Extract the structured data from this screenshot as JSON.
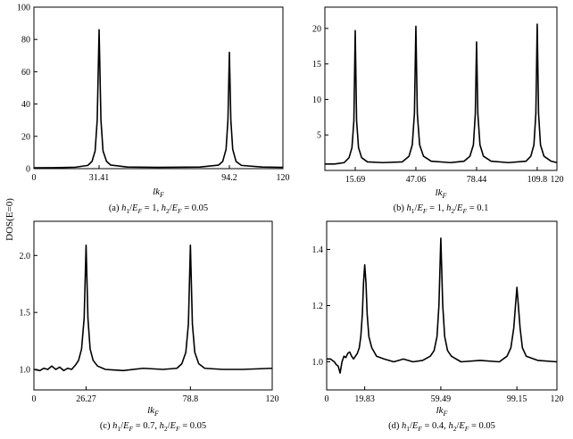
{
  "figure": {
    "ylabel": "DOS(E=0)"
  },
  "chart_data": [
    {
      "type": "line",
      "panel": "a",
      "caption": {
        "prefix": "(a)",
        "h1_value": "1",
        "h2_value": "0.05"
      },
      "xlabel": "lk_F",
      "xlim": [
        0,
        120
      ],
      "ylim": [
        0,
        100
      ],
      "xticks": [
        "0",
        "31.41",
        "94.2",
        "120"
      ],
      "xtick_values": [
        0,
        31.41,
        94.2,
        120
      ],
      "yticks": [
        "0",
        "20",
        "40",
        "60",
        "80",
        "100"
      ],
      "ytick_values": [
        0,
        20,
        40,
        60,
        80,
        100
      ],
      "peaks": [
        {
          "x": 31.41,
          "y": 86
        },
        {
          "x": 94.2,
          "y": 72
        }
      ],
      "baseline": 1.0,
      "series": [
        {
          "x": [
            0,
            10,
            20,
            26,
            28,
            29.5,
            30.5,
            31.41,
            32.3,
            33.3,
            35,
            37,
            45,
            60,
            80,
            89,
            91,
            92.6,
            93.5,
            94.2,
            94.9,
            95.8,
            97.4,
            100,
            110,
            120
          ],
          "values": [
            0.5,
            0.6,
            0.9,
            2.0,
            4.5,
            11,
            30,
            86,
            30,
            11,
            4.5,
            2.2,
            1.0,
            0.8,
            1.0,
            2.2,
            4.5,
            12,
            30,
            72,
            30,
            12,
            4.5,
            2.0,
            1.0,
            0.8
          ]
        }
      ]
    },
    {
      "type": "line",
      "panel": "b",
      "caption": {
        "prefix": "(b)",
        "h1_value": "1",
        "h2_value": "0.1"
      },
      "xlabel": "lk_F",
      "xlim": [
        0,
        120
      ],
      "ylim": [
        0,
        23
      ],
      "xticks": [
        "15.69",
        "47.06",
        "78.44",
        "109.8",
        "120"
      ],
      "xtick_values": [
        15.69,
        47.06,
        78.44,
        109.8,
        120
      ],
      "yticks": [
        "5",
        "10",
        "15",
        "20"
      ],
      "ytick_values": [
        5,
        10,
        15,
        20
      ],
      "peaks": [
        {
          "x": 15.69,
          "y": 19.7
        },
        {
          "x": 47.06,
          "y": 20.3
        },
        {
          "x": 78.44,
          "y": 18.1
        },
        {
          "x": 109.8,
          "y": 20.6
        }
      ],
      "baseline": 1.0,
      "series": [
        {
          "x": [
            0,
            5,
            10,
            12.5,
            14,
            15,
            15.69,
            16.4,
            17.4,
            19,
            22,
            30,
            40,
            43.5,
            45.2,
            46.3,
            47.06,
            47.8,
            49,
            51,
            55,
            65,
            72,
            75,
            76.8,
            77.8,
            78.44,
            79.1,
            80.2,
            82,
            86,
            95,
            104,
            106.5,
            108.1,
            109.1,
            109.8,
            110.5,
            111.5,
            113.3,
            117,
            120
          ],
          "values": [
            0.9,
            0.9,
            1.1,
            1.8,
            3.2,
            7,
            19.7,
            7,
            3.2,
            1.8,
            1.2,
            1.1,
            1.2,
            2.0,
            3.6,
            8,
            20.3,
            8,
            3.6,
            2.0,
            1.3,
            1.1,
            1.3,
            2.0,
            3.6,
            8,
            18.1,
            8,
            3.6,
            2.0,
            1.3,
            1.1,
            1.3,
            2.0,
            3.6,
            8,
            20.6,
            8,
            3.6,
            2.0,
            1.3,
            1.1
          ]
        }
      ]
    },
    {
      "type": "line",
      "panel": "c",
      "caption": {
        "prefix": "(c)",
        "h1_value": "0.7",
        "h2_value": "0.05"
      },
      "xlabel": "lk_F",
      "xlim": [
        0,
        120
      ],
      "ylim": [
        0.82,
        2.3
      ],
      "xticks": [
        "0",
        "26.27",
        "78.8",
        "120"
      ],
      "xtick_values": [
        0,
        26.27,
        78.8,
        120
      ],
      "yticks": [
        "1.0",
        "1.5",
        "2.0"
      ],
      "ytick_values": [
        1.0,
        1.5,
        2.0
      ],
      "peaks": [
        {
          "x": 26.27,
          "y": 2.09
        },
        {
          "x": 78.8,
          "y": 2.09
        }
      ],
      "baseline": 1.0,
      "series": [
        {
          "x": [
            0,
            3,
            5,
            7,
            9,
            11,
            13,
            15,
            17,
            19,
            21,
            22.5,
            24,
            25.3,
            26.27,
            27.2,
            28.3,
            29.8,
            32,
            36,
            45,
            55,
            65,
            72,
            74.5,
            76.5,
            77.8,
            78.8,
            79.8,
            81,
            83,
            86,
            95,
            105,
            120
          ],
          "values": [
            1.0,
            0.99,
            1.01,
            1.0,
            1.03,
            1.0,
            1.02,
            0.99,
            1.01,
            1.0,
            1.04,
            1.08,
            1.18,
            1.45,
            2.09,
            1.45,
            1.18,
            1.08,
            1.03,
            1.0,
            0.99,
            1.01,
            1.0,
            1.01,
            1.05,
            1.15,
            1.4,
            2.09,
            1.4,
            1.15,
            1.05,
            1.01,
            1.0,
            1.0,
            1.01
          ]
        }
      ]
    },
    {
      "type": "line",
      "panel": "d",
      "caption": {
        "prefix": "(d)",
        "h1_value": "0.4",
        "h2_value": "0.05"
      },
      "xlabel": "lk_F",
      "xlim": [
        0,
        120
      ],
      "ylim": [
        0.9,
        1.5
      ],
      "xticks": [
        "0",
        "19.83",
        "59.49",
        "99.15",
        "120"
      ],
      "xtick_values": [
        0,
        19.83,
        59.49,
        99.15,
        120
      ],
      "yticks": [
        "1.0",
        "1.2",
        "1.4"
      ],
      "ytick_values": [
        1.0,
        1.2,
        1.4
      ],
      "peaks": [
        {
          "x": 19.83,
          "y": 1.345
        },
        {
          "x": 59.49,
          "y": 1.44
        },
        {
          "x": 99.15,
          "y": 1.265
        }
      ],
      "baseline": 1.0,
      "series": [
        {
          "x": [
            0,
            2,
            4,
            5,
            6,
            7,
            8,
            9,
            10,
            11,
            12,
            13,
            14,
            15,
            16,
            17,
            17.8,
            18.6,
            19.2,
            19.83,
            20.5,
            21.1,
            22,
            23.5,
            26,
            30,
            35,
            40,
            45,
            50,
            54,
            56,
            57.5,
            58.5,
            59.49,
            60.5,
            61.5,
            63,
            65,
            70,
            80,
            90,
            94,
            96,
            97.5,
            98.4,
            99.15,
            99.9,
            100.8,
            102,
            104,
            110,
            120
          ],
          "values": [
            1.01,
            1.01,
            1.0,
            0.99,
            0.985,
            0.96,
            1.0,
            1.02,
            1.015,
            1.03,
            1.035,
            1.02,
            1.01,
            1.02,
            1.03,
            1.05,
            1.09,
            1.17,
            1.28,
            1.345,
            1.28,
            1.17,
            1.09,
            1.05,
            1.02,
            1.01,
            1.0,
            1.01,
            1.0,
            1.005,
            1.02,
            1.04,
            1.09,
            1.2,
            1.44,
            1.2,
            1.09,
            1.04,
            1.02,
            1.0,
            1.005,
            1.0,
            1.02,
            1.05,
            1.12,
            1.2,
            1.265,
            1.2,
            1.12,
            1.05,
            1.02,
            1.005,
            1.0
          ]
        }
      ]
    }
  ]
}
